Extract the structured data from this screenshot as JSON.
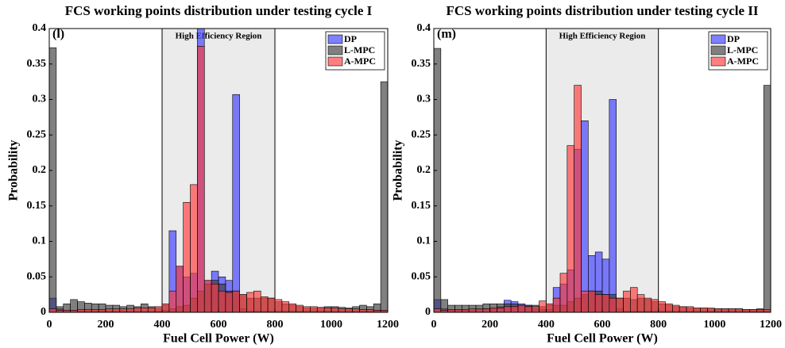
{
  "chart_data": [
    {
      "type": "histogram",
      "title": "FCS working points distribution under testing cycle I",
      "panel_label": "(l)",
      "xlabel": "Fuel Cell Power (W)",
      "ylabel": "Probability",
      "bins": [
        0,
        25,
        50,
        75,
        100,
        125,
        150,
        175,
        200,
        225,
        250,
        275,
        300,
        325,
        350,
        375,
        400,
        425,
        450,
        475,
        500,
        525,
        550,
        575,
        600,
        625,
        650,
        675,
        700,
        725,
        750,
        775,
        800,
        825,
        850,
        875,
        900,
        925,
        950,
        975,
        1000,
        1025,
        1050,
        1075,
        1100,
        1125,
        1150,
        1175,
        1200
      ],
      "series": [
        {
          "name": "DP",
          "color": "#3a3aff",
          "values": [
            0.02,
            0.005,
            0.003,
            0.003,
            0.002,
            0.002,
            0.002,
            0.002,
            0.002,
            0.002,
            0.002,
            0.002,
            0.002,
            0.002,
            0.002,
            0.002,
            0.003,
            0.115,
            0.065,
            0.05,
            0.055,
            0.4,
            0.045,
            0.058,
            0.05,
            0.045,
            0.307,
            0.005,
            0.002,
            0.002,
            0.002,
            0.002,
            0.002,
            0.002,
            0.002,
            0.002,
            0.002,
            0.002,
            0.002,
            0.002,
            0.002,
            0.002,
            0.002,
            0.002,
            0.002,
            0.002,
            0.002,
            0.002
          ]
        },
        {
          "name": "L-MPC",
          "color": "#3c3c3c",
          "values": [
            0.373,
            0.008,
            0.012,
            0.018,
            0.015,
            0.013,
            0.012,
            0.012,
            0.01,
            0.01,
            0.008,
            0.01,
            0.008,
            0.012,
            0.008,
            0.006,
            0.01,
            0.005,
            0.008,
            0.01,
            0.02,
            0.03,
            0.04,
            0.045,
            0.04,
            0.03,
            0.03,
            0.025,
            0.02,
            0.02,
            0.02,
            0.02,
            0.015,
            0.012,
            0.01,
            0.008,
            0.006,
            0.006,
            0.006,
            0.008,
            0.008,
            0.007,
            0.006,
            0.008,
            0.01,
            0.008,
            0.012,
            0.325
          ]
        },
        {
          "name": "A-MPC",
          "color": "#ff3a3a",
          "values": [
            0.005,
            0.003,
            0.003,
            0.003,
            0.004,
            0.004,
            0.004,
            0.004,
            0.005,
            0.005,
            0.005,
            0.005,
            0.006,
            0.006,
            0.006,
            0.008,
            0.012,
            0.03,
            0.065,
            0.155,
            0.18,
            0.375,
            0.045,
            0.04,
            0.03,
            0.028,
            0.03,
            0.025,
            0.028,
            0.03,
            0.022,
            0.02,
            0.018,
            0.015,
            0.012,
            0.01,
            0.008,
            0.008,
            0.007,
            0.006,
            0.006,
            0.005,
            0.005,
            0.005,
            0.004,
            0.004,
            0.003,
            0.003
          ]
        }
      ],
      "xlim": [
        0,
        1200
      ],
      "ylim": [
        0,
        0.4
      ],
      "xticks": [
        0,
        200,
        400,
        600,
        800,
        1000,
        1200
      ],
      "yticks": [
        0,
        0.05,
        0.1,
        0.15,
        0.2,
        0.25,
        0.3,
        0.35,
        0.4
      ],
      "region": {
        "x": [
          400,
          800
        ],
        "label": "High Efficiency Region"
      },
      "legend": "upper right"
    },
    {
      "type": "histogram",
      "title": "FCS working points distribution under testing cycle II",
      "panel_label": "(m)",
      "xlabel": "Fuel Cell Power (W)",
      "ylabel": "Probability",
      "bins": [
        0,
        25,
        50,
        75,
        100,
        125,
        150,
        175,
        200,
        225,
        250,
        275,
        300,
        325,
        350,
        375,
        400,
        425,
        450,
        475,
        500,
        525,
        550,
        575,
        600,
        625,
        650,
        675,
        700,
        725,
        750,
        775,
        800,
        825,
        850,
        875,
        900,
        925,
        950,
        975,
        1000,
        1025,
        1050,
        1075,
        1100,
        1125,
        1150,
        1175,
        1200
      ],
      "series": [
        {
          "name": "DP",
          "color": "#3a3aff",
          "values": [
            0.018,
            0.005,
            0.003,
            0.003,
            0.003,
            0.003,
            0.004,
            0.005,
            0.005,
            0.008,
            0.017,
            0.015,
            0.012,
            0.01,
            0.005,
            0.004,
            0.004,
            0.035,
            0.04,
            0.06,
            0.23,
            0.27,
            0.08,
            0.085,
            0.075,
            0.3,
            0.005,
            0.002,
            0.002,
            0.002,
            0.002,
            0.002,
            0.002,
            0.002,
            0.002,
            0.002,
            0.002,
            0.002,
            0.002,
            0.002,
            0.002,
            0.002,
            0.002,
            0.002,
            0.002,
            0.002,
            0.002,
            0.002
          ]
        },
        {
          "name": "L-MPC",
          "color": "#3c3c3c",
          "values": [
            0.372,
            0.018,
            0.01,
            0.01,
            0.01,
            0.01,
            0.01,
            0.012,
            0.012,
            0.012,
            0.012,
            0.012,
            0.01,
            0.01,
            0.01,
            0.008,
            0.01,
            0.01,
            0.01,
            0.015,
            0.02,
            0.025,
            0.03,
            0.03,
            0.025,
            0.025,
            0.02,
            0.02,
            0.018,
            0.02,
            0.018,
            0.015,
            0.012,
            0.01,
            0.008,
            0.008,
            0.006,
            0.006,
            0.006,
            0.005,
            0.005,
            0.005,
            0.005,
            0.005,
            0.004,
            0.004,
            0.005,
            0.32
          ]
        },
        {
          "name": "A-MPC",
          "color": "#ff3a3a",
          "values": [
            0.005,
            0.003,
            0.004,
            0.004,
            0.004,
            0.005,
            0.005,
            0.005,
            0.006,
            0.006,
            0.008,
            0.008,
            0.01,
            0.008,
            0.008,
            0.016,
            0.012,
            0.02,
            0.055,
            0.235,
            0.32,
            0.03,
            0.03,
            0.025,
            0.025,
            0.02,
            0.02,
            0.03,
            0.035,
            0.025,
            0.02,
            0.018,
            0.015,
            0.012,
            0.01,
            0.008,
            0.008,
            0.006,
            0.006,
            0.006,
            0.005,
            0.005,
            0.005,
            0.005,
            0.004,
            0.004,
            0.004,
            0.004
          ]
        }
      ],
      "xlim": [
        0,
        1200
      ],
      "ylim": [
        0,
        0.4
      ],
      "xticks": [
        0,
        200,
        400,
        600,
        800,
        1000,
        1200
      ],
      "yticks": [
        0,
        0.05,
        0.1,
        0.15,
        0.2,
        0.25,
        0.3,
        0.35,
        0.4
      ],
      "region": {
        "x": [
          400,
          800
        ],
        "label": "High Efficiency Region"
      },
      "legend": "upper right"
    }
  ]
}
